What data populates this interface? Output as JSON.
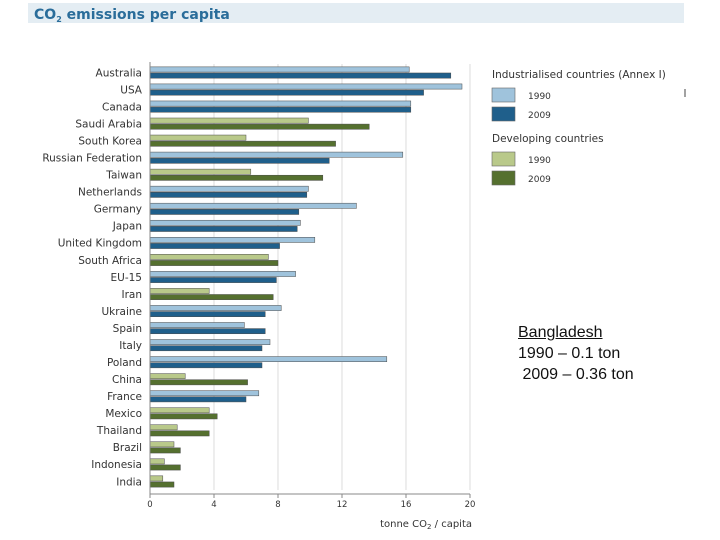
{
  "chart_data": {
    "type": "bar",
    "orientation": "horizontal",
    "title_prefix": "CO",
    "title_sub": "2",
    "title_suffix": " emissions per capita",
    "xlabel_prefix": "tonne CO",
    "xlabel_sub": "2",
    "xlabel_suffix": " / capita",
    "xlim": [
      0,
      20
    ],
    "xticks": [
      0,
      4,
      8,
      12,
      16,
      20
    ],
    "categories": [
      "Australia",
      "USA",
      "Canada",
      "Saudi Arabia",
      "South Korea",
      "Russian Federation",
      "Taiwan",
      "Netherlands",
      "Germany",
      "Japan",
      "United Kingdom",
      "South Africa",
      "EU-15",
      "Iran",
      "Ukraine",
      "Spain",
      "Italy",
      "Poland",
      "China",
      "France",
      "Mexico",
      "Thailand",
      "Brazil",
      "Indonesia",
      "India"
    ],
    "group": [
      "industrialised",
      "industrialised",
      "industrialised",
      "developing",
      "developing",
      "industrialised",
      "developing",
      "industrialised",
      "industrialised",
      "industrialised",
      "industrialised",
      "developing",
      "industrialised",
      "developing",
      "industrialised",
      "industrialised",
      "industrialised",
      "industrialised",
      "developing",
      "industrialised",
      "developing",
      "developing",
      "developing",
      "developing",
      "developing"
    ],
    "series": [
      {
        "name": "1990",
        "values": [
          16.2,
          19.5,
          16.3,
          9.9,
          6.0,
          15.8,
          6.3,
          9.9,
          12.9,
          9.4,
          10.3,
          7.4,
          9.1,
          3.7,
          8.2,
          5.9,
          7.5,
          14.8,
          2.2,
          6.8,
          3.7,
          1.7,
          1.5,
          0.9,
          0.8
        ]
      },
      {
        "name": "2009",
        "values": [
          18.8,
          17.1,
          16.3,
          13.7,
          11.6,
          11.2,
          10.8,
          9.8,
          9.3,
          9.2,
          8.1,
          8.0,
          7.9,
          7.7,
          7.2,
          7.2,
          7.0,
          7.0,
          6.1,
          6.0,
          4.2,
          3.7,
          1.9,
          1.9,
          1.5
        ]
      }
    ],
    "legend": {
      "position": "right",
      "groups": [
        {
          "title": "Industrialised countries (Annex I)",
          "entries": [
            {
              "label": "1990",
              "color_key": "industrialised_1990"
            },
            {
              "label": "2009",
              "color_key": "industrialised_2009"
            }
          ]
        },
        {
          "title": "Developing countries",
          "entries": [
            {
              "label": "1990",
              "color_key": "developing_1990"
            },
            {
              "label": "2009",
              "color_key": "developing_2009"
            }
          ]
        }
      ]
    },
    "colors": {
      "industrialised_1990": "#9fc3dc",
      "industrialised_2009": "#1f5f8b",
      "developing_1990": "#b9c98a",
      "developing_2009": "#55702f",
      "axis": "#888888",
      "title": "#2a6d9a",
      "title_band": "#e4edf3",
      "text": "#333333"
    }
  },
  "note": {
    "heading": "Bangladesh",
    "line1": "1990 – 0.1 ton",
    "line2": " 2009 – 0.36 ton"
  }
}
